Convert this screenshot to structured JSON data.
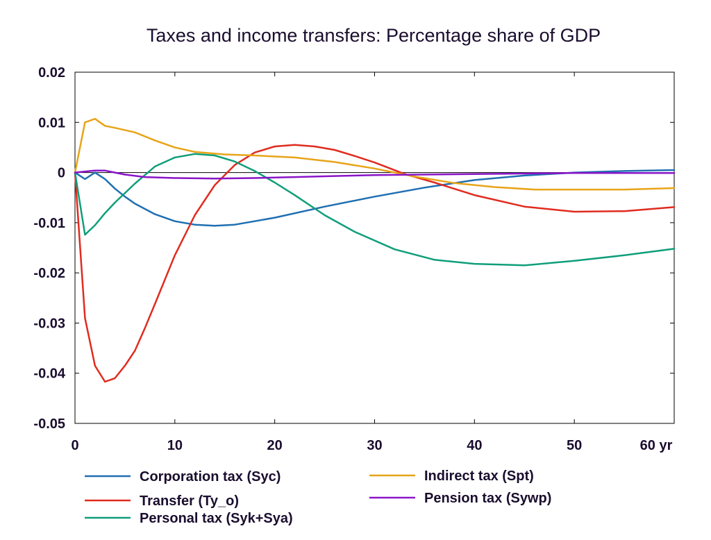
{
  "chart_data": {
    "type": "line",
    "title": "Taxes and income transfers: Percentage share of GDP",
    "xlabel": "",
    "ylabel": "",
    "xlim": [
      0,
      60
    ],
    "ylim": [
      -0.05,
      0.02
    ],
    "x_ticks": [
      0,
      10,
      20,
      30,
      40,
      50,
      60
    ],
    "x_tick_labels": [
      "0",
      "10",
      "20",
      "30",
      "40",
      "50",
      "60 yr"
    ],
    "y_ticks": [
      0.02,
      0.01,
      0,
      -0.01,
      -0.02,
      -0.03,
      -0.04,
      -0.05
    ],
    "y_tick_labels": [
      "0.02",
      "0.01",
      "0",
      "-0.01",
      "-0.02",
      "-0.03",
      "-0.04",
      "-0.05"
    ],
    "grid": false,
    "zero_line": true,
    "legend_position": "bottom",
    "series": [
      {
        "name": "Corporation tax (Syc)",
        "color": "#1f6fb2",
        "x": [
          0,
          1,
          2,
          3,
          4,
          5,
          6,
          8,
          10,
          12,
          14,
          16,
          18,
          20,
          25,
          30,
          35,
          40,
          45,
          50,
          55,
          60
        ],
        "y": [
          0,
          -0.0013,
          0,
          -0.0013,
          -0.0032,
          -0.0048,
          -0.0062,
          -0.0083,
          -0.0097,
          -0.0104,
          -0.0106,
          -0.0104,
          -0.0097,
          -0.009,
          -0.0068,
          -0.0048,
          -0.003,
          -0.0015,
          -0.0006,
          0,
          0.0003,
          0.0005
        ]
      },
      {
        "name": "Transfer (Ty_o)",
        "color": "#e02b1e",
        "x": [
          0,
          1,
          2,
          3,
          4,
          5,
          6,
          7,
          8,
          10,
          12,
          14,
          16,
          18,
          20,
          22,
          24,
          26,
          28,
          30,
          33,
          36,
          40,
          45,
          50,
          55,
          60
        ],
        "y": [
          0,
          -0.029,
          -0.0385,
          -0.0417,
          -0.041,
          -0.0385,
          -0.0355,
          -0.031,
          -0.0262,
          -0.0165,
          -0.0085,
          -0.0025,
          0.0015,
          0.004,
          0.0052,
          0.0055,
          0.0052,
          0.0045,
          0.0033,
          0.002,
          -0.0003,
          -0.002,
          -0.0045,
          -0.0068,
          -0.0078,
          -0.0077,
          -0.0069
        ]
      },
      {
        "name": "Personal tax (Syk+Sya)",
        "color": "#0f9e7a",
        "x": [
          0,
          1,
          2,
          3,
          4,
          6,
          8,
          10,
          12,
          14,
          16,
          18,
          20,
          22,
          25,
          28,
          32,
          36,
          40,
          45,
          50,
          55,
          60
        ],
        "y": [
          0,
          -0.0124,
          -0.0105,
          -0.0081,
          -0.006,
          -0.0022,
          0.0012,
          0.003,
          0.0037,
          0.0034,
          0.0022,
          0.0003,
          -0.002,
          -0.0045,
          -0.0085,
          -0.0118,
          -0.0153,
          -0.0174,
          -0.0182,
          -0.0185,
          -0.0176,
          -0.0165,
          -0.0152
        ]
      },
      {
        "name": "Indirect tax (Spt)",
        "color": "#e8a418",
        "x": [
          0,
          1,
          2,
          3,
          4,
          6,
          8,
          10,
          12,
          15,
          18,
          22,
          26,
          30,
          34,
          38,
          42,
          46,
          50,
          55,
          60
        ],
        "y": [
          0,
          0.01,
          0.0107,
          0.0093,
          0.0089,
          0.008,
          0.0064,
          0.005,
          0.0041,
          0.0036,
          0.0034,
          0.003,
          0.0021,
          0.0008,
          -0.0008,
          -0.0021,
          -0.0029,
          -0.0034,
          -0.0034,
          -0.0034,
          -0.0031
        ]
      },
      {
        "name": "Pension tax (Sywp)",
        "color": "#8a14c8",
        "x": [
          0,
          1,
          2,
          3,
          4,
          5,
          7,
          10,
          14,
          18,
          22,
          26,
          30,
          35,
          40,
          45,
          50,
          55,
          60
        ],
        "y": [
          0,
          0.0002,
          0.0004,
          0.0004,
          0,
          -0.0004,
          -0.0009,
          -0.0011,
          -0.0012,
          -0.0011,
          -0.0009,
          -0.0007,
          -0.0005,
          -0.0004,
          -0.0003,
          -0.0002,
          -0.0001,
          -0.0001,
          -0.0001
        ]
      }
    ]
  }
}
